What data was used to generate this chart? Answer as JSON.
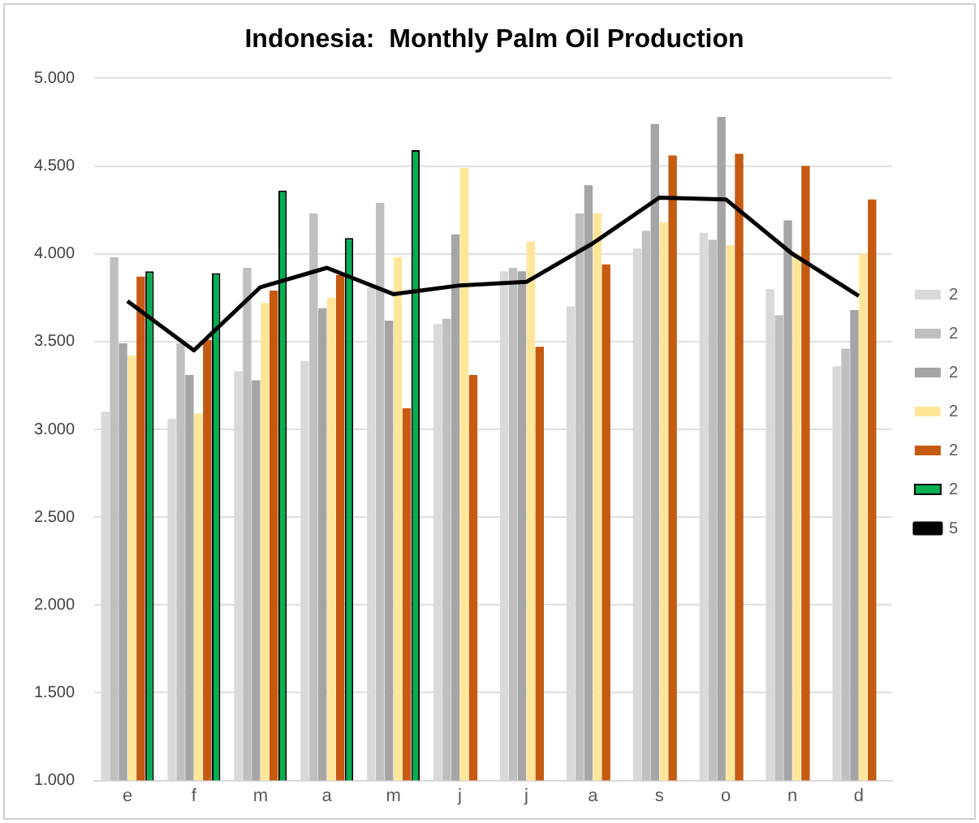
{
  "chart_data": {
    "type": "bar",
    "title": "Indonesia:  Monthly Palm Oil Production",
    "categories": [
      "e",
      "f",
      "m",
      "a",
      "m",
      "j",
      "j",
      "a",
      "s",
      "o",
      "n",
      "d"
    ],
    "series": [
      {
        "name": "2",
        "color": "#d9d9d9",
        "values": [
          3.1,
          3.06,
          3.33,
          3.39,
          3.81,
          3.6,
          3.9,
          3.7,
          4.03,
          4.12,
          3.8,
          3.36
        ]
      },
      {
        "name": "2",
        "color": "#bfbfbf",
        "values": [
          3.98,
          3.49,
          3.92,
          4.23,
          4.29,
          3.63,
          3.92,
          4.23,
          4.13,
          4.08,
          3.65,
          3.46
        ]
      },
      {
        "name": "2",
        "color": "#a5a5a5",
        "values": [
          3.49,
          3.31,
          3.28,
          3.69,
          3.62,
          4.11,
          3.9,
          4.39,
          4.74,
          4.78,
          4.19,
          3.68
        ]
      },
      {
        "name": "2",
        "color": "#ffe699",
        "values": [
          3.42,
          3.09,
          3.72,
          3.75,
          3.98,
          4.49,
          4.07,
          4.23,
          4.18,
          4.05,
          4.0,
          4.0
        ]
      },
      {
        "name": "2",
        "color": "#c55a11",
        "values": [
          3.87,
          3.51,
          3.79,
          3.88,
          3.12,
          3.31,
          3.47,
          3.94,
          4.56,
          4.57,
          4.5,
          4.31
        ]
      },
      {
        "name": "2",
        "color": "#00b050",
        "values": [
          3.9,
          3.89,
          4.36,
          4.09,
          4.59,
          null,
          null,
          null,
          null,
          null,
          null,
          null
        ]
      },
      {
        "name": "5",
        "type": "line",
        "color": "#000000",
        "values": [
          3.73,
          3.45,
          3.81,
          3.92,
          3.77,
          3.82,
          3.84,
          4.06,
          4.32,
          4.31,
          4.0,
          3.76
        ]
      }
    ],
    "ylim": [
      1,
      5
    ],
    "yticks": [
      {
        "value": 1,
        "label": "1.000"
      },
      {
        "value": 1.5,
        "label": "1.500"
      },
      {
        "value": 2,
        "label": "2.000"
      },
      {
        "value": 2.5,
        "label": "2.500"
      },
      {
        "value": 3,
        "label": "3.000"
      },
      {
        "value": 3.5,
        "label": "3.500"
      },
      {
        "value": 4,
        "label": "4.000"
      },
      {
        "value": 4.5,
        "label": "4.500"
      },
      {
        "value": 5,
        "label": "5.000"
      }
    ],
    "grid": "y",
    "legend": "right",
    "marker": "none"
  }
}
